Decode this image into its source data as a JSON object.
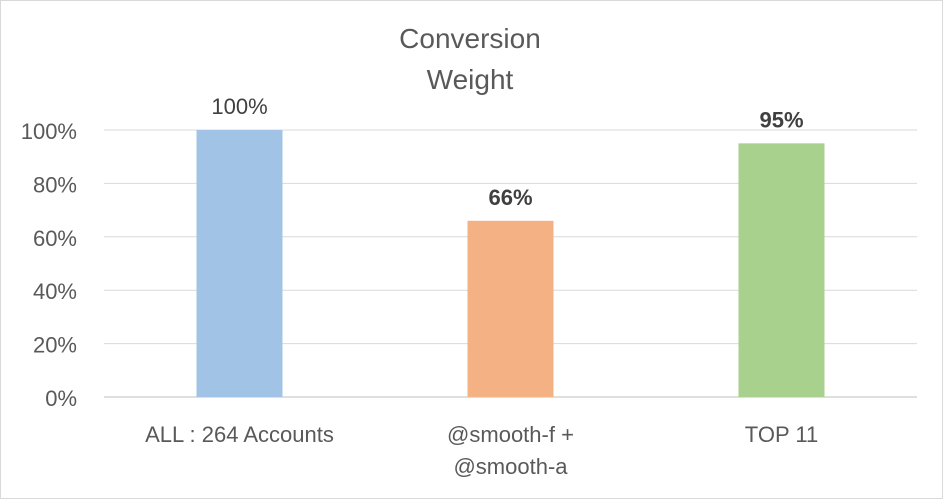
{
  "chart_data": {
    "type": "bar",
    "title_lines": [
      "Conversion",
      "Weight"
    ],
    "categories": [
      [
        "ALL : 264 Accounts"
      ],
      [
        "@smooth-f +",
        "@smooth-a"
      ],
      [
        "TOP 11"
      ]
    ],
    "values": [
      100,
      66,
      95
    ],
    "data_labels": [
      "100%",
      "66%",
      "95%"
    ],
    "data_label_bold": [
      false,
      true,
      true
    ],
    "bar_colors": [
      "#a1c3e6",
      "#f4b183",
      "#a9d18e"
    ],
    "y_ticks": [
      "0%",
      "20%",
      "40%",
      "60%",
      "80%",
      "100%"
    ],
    "ylim": [
      0,
      100
    ],
    "grid": true,
    "legend": "none"
  }
}
